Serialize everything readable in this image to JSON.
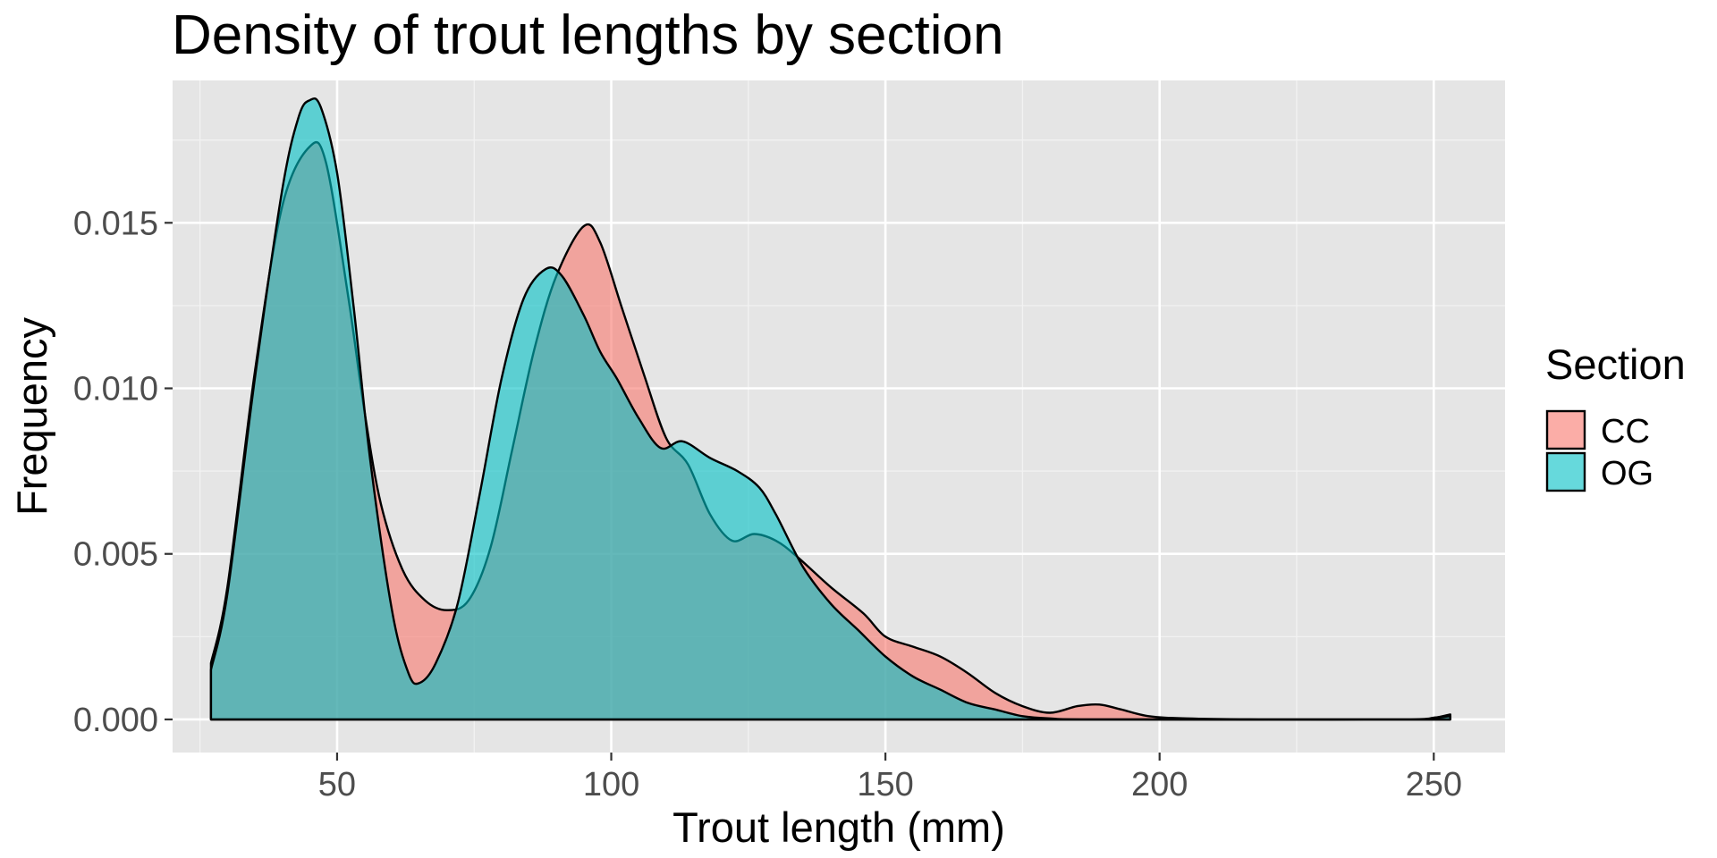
{
  "chart_data": {
    "type": "area",
    "title": "Density of trout lengths by section",
    "xlabel": "Trout length (mm)",
    "ylabel": "Frequency",
    "xlim": [
      20,
      263
    ],
    "ylim": [
      -0.001,
      0.0193
    ],
    "x_ticks": [
      50,
      100,
      150,
      200,
      250
    ],
    "x_tick_labels": [
      "50",
      "100",
      "150",
      "200",
      "250"
    ],
    "y_ticks": [
      0,
      0.005,
      0.01,
      0.015
    ],
    "y_tick_labels": [
      "0.000",
      "0.005",
      "0.010",
      "0.015"
    ],
    "grid": true,
    "legend": {
      "title": "Section",
      "position": "right"
    },
    "fill_opacity": 0.6,
    "series": [
      {
        "name": "CC",
        "color": "#F8766D",
        "points": [
          [
            27,
            0.0017
          ],
          [
            30,
            0.004
          ],
          [
            35,
            0.0105
          ],
          [
            40,
            0.0155
          ],
          [
            45,
            0.0173
          ],
          [
            48,
            0.0168
          ],
          [
            52,
            0.0128
          ],
          [
            55,
            0.0093
          ],
          [
            58,
            0.0065
          ],
          [
            62,
            0.0045
          ],
          [
            66,
            0.0036
          ],
          [
            70,
            0.0033
          ],
          [
            74,
            0.0036
          ],
          [
            78,
            0.0052
          ],
          [
            82,
            0.0082
          ],
          [
            86,
            0.0112
          ],
          [
            90,
            0.0134
          ],
          [
            95,
            0.0149
          ],
          [
            98,
            0.0144
          ],
          [
            102,
            0.0124
          ],
          [
            106,
            0.0104
          ],
          [
            110,
            0.0085
          ],
          [
            114,
            0.0077
          ],
          [
            118,
            0.0062
          ],
          [
            122,
            0.0054
          ],
          [
            126,
            0.0056
          ],
          [
            130,
            0.0054
          ],
          [
            134,
            0.0049
          ],
          [
            140,
            0.004
          ],
          [
            146,
            0.0032
          ],
          [
            150,
            0.0025
          ],
          [
            155,
            0.0022
          ],
          [
            160,
            0.0019
          ],
          [
            165,
            0.0014
          ],
          [
            170,
            0.0008
          ],
          [
            175,
            0.0004
          ],
          [
            180,
            0.0002
          ],
          [
            185,
            0.0004
          ],
          [
            189,
            0.00045
          ],
          [
            193,
            0.0003
          ],
          [
            198,
            0.0001
          ],
          [
            205,
            3e-05
          ],
          [
            220,
            0.0
          ],
          [
            245,
            0.0
          ],
          [
            250,
            5e-05
          ],
          [
            253,
            0.00015
          ]
        ]
      },
      {
        "name": "OG",
        "color": "#00BFC4",
        "points": [
          [
            27,
            0.0015
          ],
          [
            30,
            0.0038
          ],
          [
            35,
            0.0103
          ],
          [
            40,
            0.016
          ],
          [
            43,
            0.0182
          ],
          [
            45,
            0.0187
          ],
          [
            47,
            0.0185
          ],
          [
            50,
            0.0165
          ],
          [
            53,
            0.0125
          ],
          [
            56,
            0.0079
          ],
          [
            60,
            0.0033
          ],
          [
            63,
            0.0014
          ],
          [
            65,
            0.0011
          ],
          [
            68,
            0.0017
          ],
          [
            72,
            0.0035
          ],
          [
            76,
            0.0068
          ],
          [
            80,
            0.0103
          ],
          [
            84,
            0.0127
          ],
          [
            88,
            0.0136
          ],
          [
            91,
            0.0134
          ],
          [
            95,
            0.0122
          ],
          [
            98,
            0.0111
          ],
          [
            101,
            0.0103
          ],
          [
            105,
            0.0091
          ],
          [
            109,
            0.0082
          ],
          [
            113,
            0.0084
          ],
          [
            118,
            0.0079
          ],
          [
            123,
            0.0075
          ],
          [
            127,
            0.007
          ],
          [
            130,
            0.0062
          ],
          [
            135,
            0.0046
          ],
          [
            140,
            0.0035
          ],
          [
            145,
            0.0027
          ],
          [
            150,
            0.0019
          ],
          [
            155,
            0.0013
          ],
          [
            160,
            0.0009
          ],
          [
            165,
            0.0005
          ],
          [
            170,
            0.0003
          ],
          [
            175,
            0.0001
          ],
          [
            180,
            3e-05
          ],
          [
            190,
            0.0
          ],
          [
            245,
            0.0
          ],
          [
            250,
            5e-05
          ],
          [
            253,
            0.0001
          ]
        ]
      }
    ]
  }
}
